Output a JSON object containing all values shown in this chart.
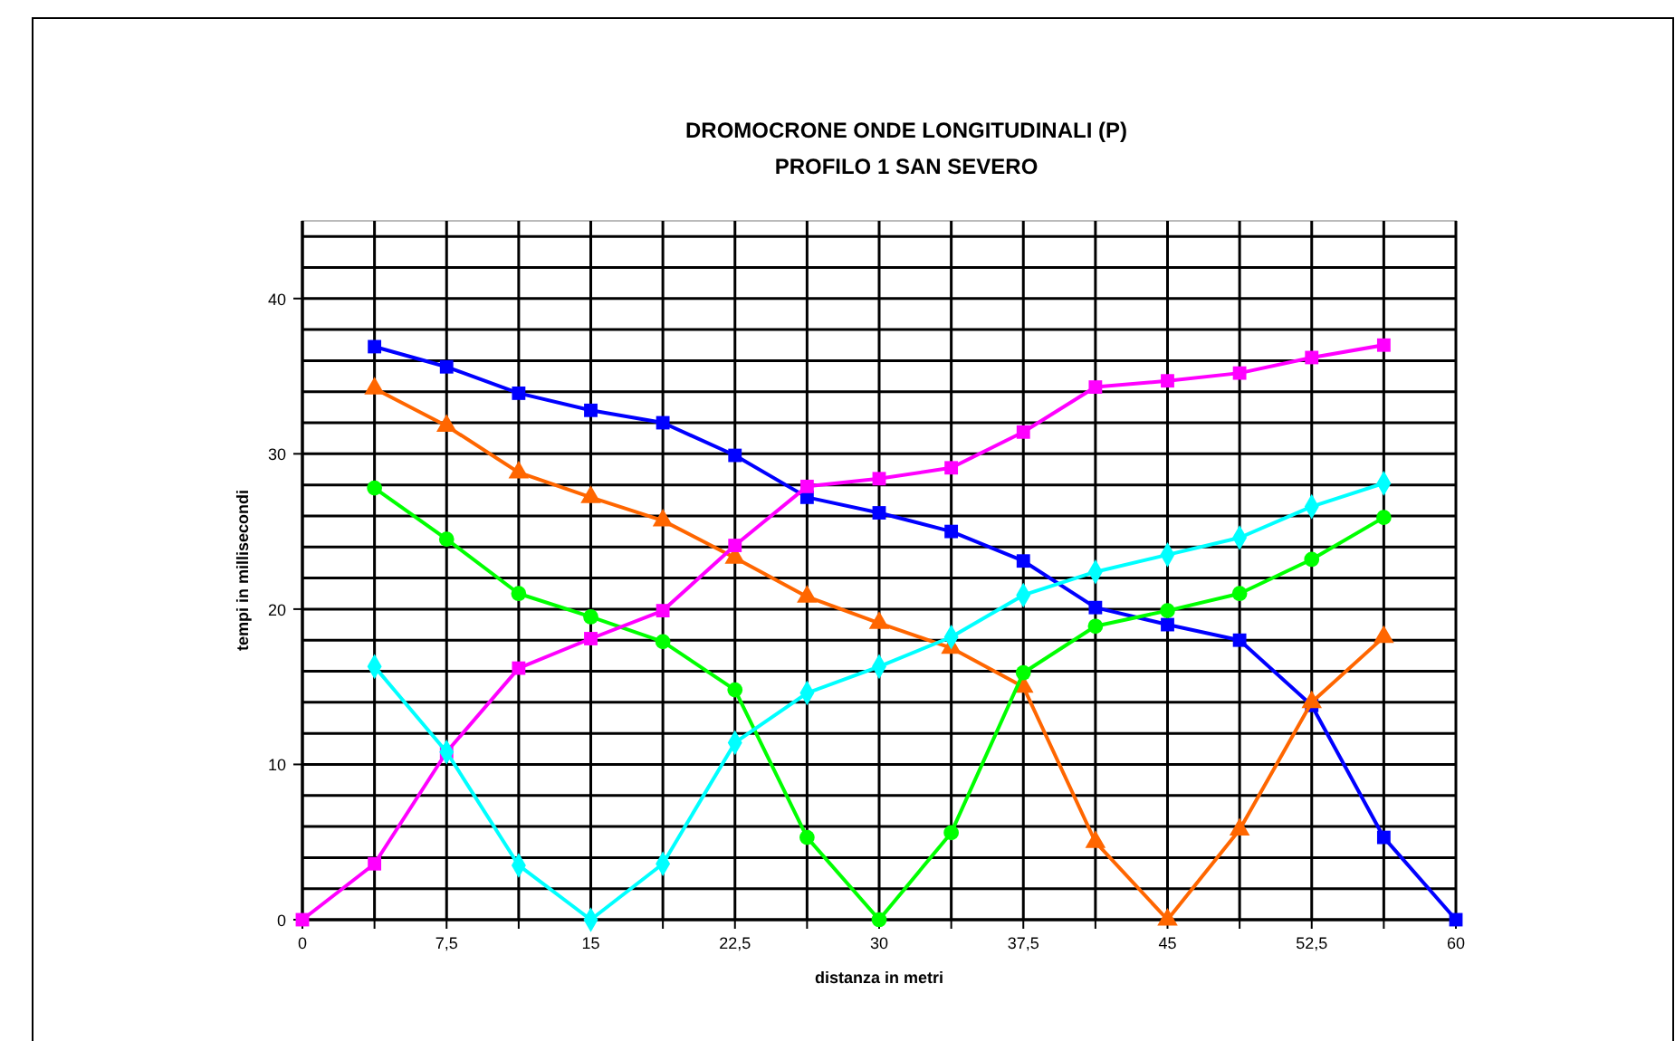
{
  "chart_data": {
    "type": "line",
    "title": "DROMOCRONE ONDE LONGITUDINALI (P)",
    "subtitle": "PROFILO 1 SAN SEVERO",
    "xlabel": "distanza in metri",
    "ylabel": "tempi in millisecondi",
    "xlim": [
      0,
      60
    ],
    "ylim": [
      0,
      45
    ],
    "xticks": [
      0,
      {
        "value": 3.75,
        "label": null
      },
      {
        "value": 7.5,
        "label": "7,5"
      },
      {
        "value": 11.25,
        "label": null
      },
      15,
      {
        "value": 18.75,
        "label": null
      },
      {
        "value": 22.5,
        "label": "22,5"
      },
      {
        "value": 26.25,
        "label": null
      },
      30,
      {
        "value": 33.75,
        "label": null
      },
      {
        "value": 37.5,
        "label": "37,5"
      },
      {
        "value": 41.25,
        "label": null
      },
      45,
      {
        "value": 48.75,
        "label": null
      },
      {
        "value": 52.5,
        "label": "52,5"
      },
      {
        "value": 56.25,
        "label": null
      },
      60
    ],
    "yticks": [
      0,
      {
        "value": 2,
        "label": null
      },
      {
        "value": 4,
        "label": null
      },
      {
        "value": 6,
        "label": null
      },
      {
        "value": 8,
        "label": null
      },
      10,
      {
        "value": 12,
        "label": null
      },
      {
        "value": 14,
        "label": null
      },
      {
        "value": 16,
        "label": null
      },
      {
        "value": 18,
        "label": null
      },
      20,
      {
        "value": 22,
        "label": null
      },
      {
        "value": 24,
        "label": null
      },
      {
        "value": 26,
        "label": null
      },
      {
        "value": 28,
        "label": null
      },
      30,
      {
        "value": 32,
        "label": null
      },
      {
        "value": 34,
        "label": null
      },
      {
        "value": 36,
        "label": null
      },
      {
        "value": 38,
        "label": null
      },
      40,
      {
        "value": 42,
        "label": null
      },
      {
        "value": 44,
        "label": null
      }
    ],
    "grid": true,
    "series": [
      {
        "color": "#0000ff",
        "marker": "square",
        "x": [
          3.75,
          7.5,
          11.25,
          15,
          18.75,
          22.5,
          26.25,
          30,
          33.75,
          37.5,
          41.25,
          45,
          48.75,
          52.5,
          56.25,
          60
        ],
        "values": [
          36.9,
          35.6,
          33.9,
          32.8,
          32.0,
          29.9,
          27.2,
          26.2,
          25.0,
          23.1,
          20.1,
          19.0,
          18.0,
          13.8,
          5.3,
          0
        ]
      },
      {
        "color": "#ff6600",
        "marker": "triangle",
        "x": [
          3.75,
          7.5,
          11.25,
          15,
          18.75,
          22.5,
          26.25,
          30,
          33.75,
          37.5,
          41.25,
          45,
          48.75,
          52.5,
          56.25
        ],
        "values": [
          34.2,
          31.8,
          28.8,
          27.2,
          25.7,
          23.3,
          20.8,
          19.1,
          17.5,
          15.0,
          5.0,
          0,
          5.8,
          14.0,
          18.2
        ]
      },
      {
        "color": "#00ff00",
        "marker": "circle",
        "x": [
          3.75,
          7.5,
          11.25,
          15,
          18.75,
          22.5,
          26.25,
          30,
          33.75,
          37.5,
          41.25,
          45,
          48.75,
          52.5,
          56.25
        ],
        "values": [
          27.8,
          24.5,
          21.0,
          19.5,
          17.9,
          14.8,
          5.3,
          0,
          5.6,
          15.9,
          18.9,
          19.9,
          21.0,
          23.2,
          25.9
        ]
      },
      {
        "color": "#ff00ff",
        "marker": "square",
        "x": [
          0,
          3.75,
          7.5,
          11.25,
          15,
          18.75,
          22.5,
          26.25,
          30,
          33.75,
          37.5,
          41.25,
          45,
          48.75,
          52.5,
          56.25
        ],
        "values": [
          0,
          3.6,
          10.8,
          16.2,
          18.1,
          19.9,
          24.1,
          27.9,
          28.4,
          29.1,
          31.4,
          34.3,
          34.7,
          35.2,
          36.2,
          37.0
        ]
      },
      {
        "color": "#00ffff",
        "marker": "diamond",
        "x": [
          3.75,
          7.5,
          11.25,
          15,
          18.75,
          22.5,
          26.25,
          30,
          33.75,
          37.5,
          41.25,
          45,
          48.75,
          52.5,
          56.25
        ],
        "values": [
          16.3,
          10.8,
          3.5,
          0,
          3.6,
          11.4,
          14.6,
          16.3,
          18.2,
          20.9,
          22.4,
          23.5,
          24.6,
          26.6,
          28.1
        ]
      }
    ]
  }
}
